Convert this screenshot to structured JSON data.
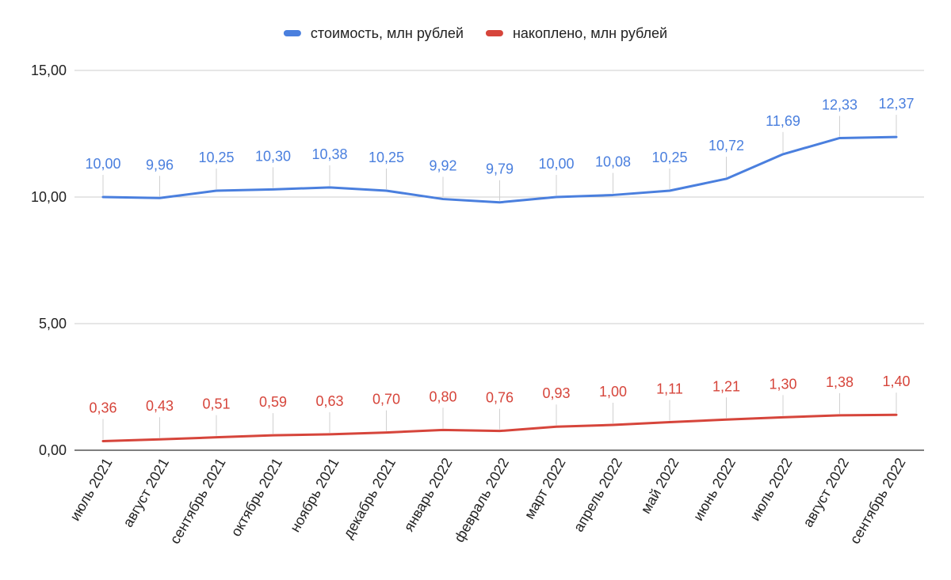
{
  "chart_data": {
    "type": "line",
    "title": "",
    "xlabel": "",
    "ylabel": "",
    "ylim": [
      0,
      15
    ],
    "yticks": [
      "0,00",
      "5,00",
      "10,00",
      "15,00"
    ],
    "ytick_values": [
      0,
      5,
      10,
      15
    ],
    "grid": true,
    "legend_position": "top",
    "categories": [
      "июль 2021",
      "август 2021",
      "сентябрь 2021",
      "октябрь 2021",
      "ноябрь 2021",
      "декабрь 2021",
      "январь 2022",
      "февраль 2022",
      "март 2022",
      "апрель 2022",
      "май 2022",
      "июнь 2022",
      "июль 2022",
      "август 2022",
      "сентябрь 2022"
    ],
    "series": [
      {
        "name": "стоимость, млн рублей",
        "color": "#4a7fde",
        "values": [
          10.0,
          9.96,
          10.25,
          10.3,
          10.38,
          10.25,
          9.92,
          9.79,
          10.0,
          10.08,
          10.25,
          10.72,
          11.69,
          12.33,
          12.37
        ],
        "labels": [
          "10,00",
          "9,96",
          "10,25",
          "10,30",
          "10,38",
          "10,25",
          "9,92",
          "9,79",
          "10,00",
          "10,08",
          "10,25",
          "10,72",
          "11,69",
          "12,33",
          "12,37"
        ]
      },
      {
        "name": "накоплено, млн рублей",
        "color": "#d6453b",
        "values": [
          0.36,
          0.43,
          0.51,
          0.59,
          0.63,
          0.7,
          0.8,
          0.76,
          0.93,
          1.0,
          1.11,
          1.21,
          1.3,
          1.38,
          1.4
        ],
        "labels": [
          "0,36",
          "0,43",
          "0,51",
          "0,59",
          "0,63",
          "0,70",
          "0,80",
          "0,76",
          "0,93",
          "1,00",
          "1,11",
          "1,21",
          "1,30",
          "1,38",
          "1,40"
        ]
      }
    ]
  }
}
